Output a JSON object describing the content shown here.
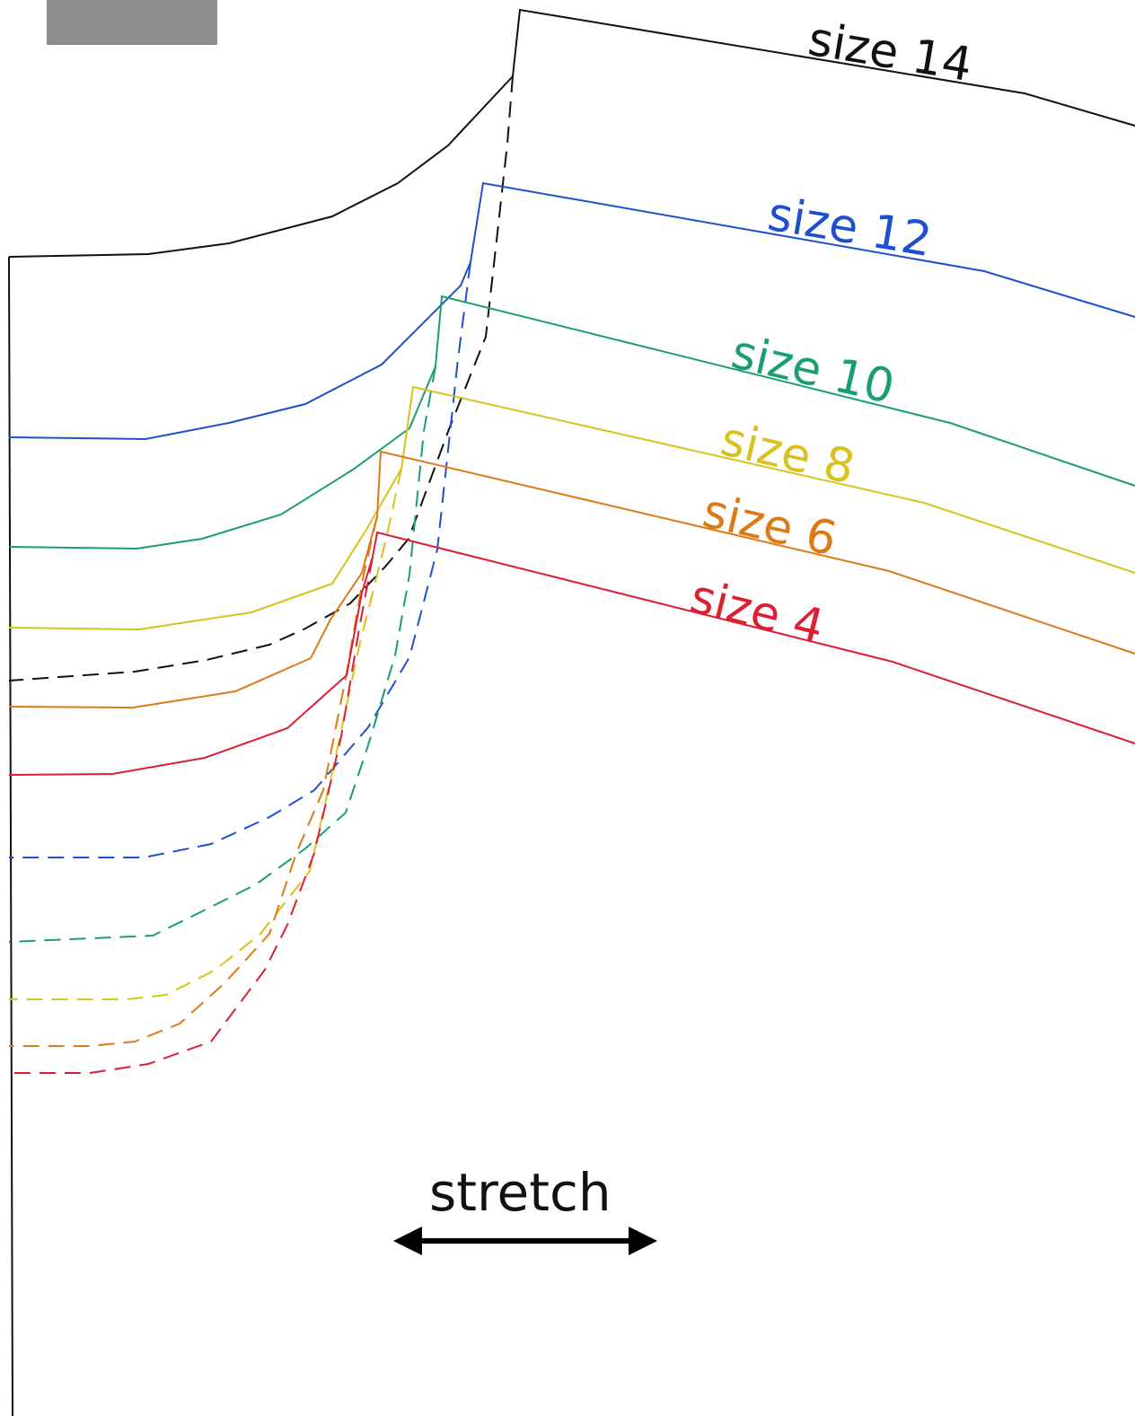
{
  "redaction_box": {
    "color": "#8c8c8c"
  },
  "sizes": [
    {
      "name": "size 14",
      "color": "#111111"
    },
    {
      "name": "size 12",
      "color": "#1f4fcf"
    },
    {
      "name": "size 10",
      "color": "#17a06b"
    },
    {
      "name": "size 8",
      "color": "#d9c21c"
    },
    {
      "name": "size 6",
      "color": "#dd7a14"
    },
    {
      "name": "size 4",
      "color": "#dc1f33"
    }
  ],
  "grainline": {
    "label": "stretch",
    "icon": "double-arrow-icon",
    "color": "#000000"
  }
}
